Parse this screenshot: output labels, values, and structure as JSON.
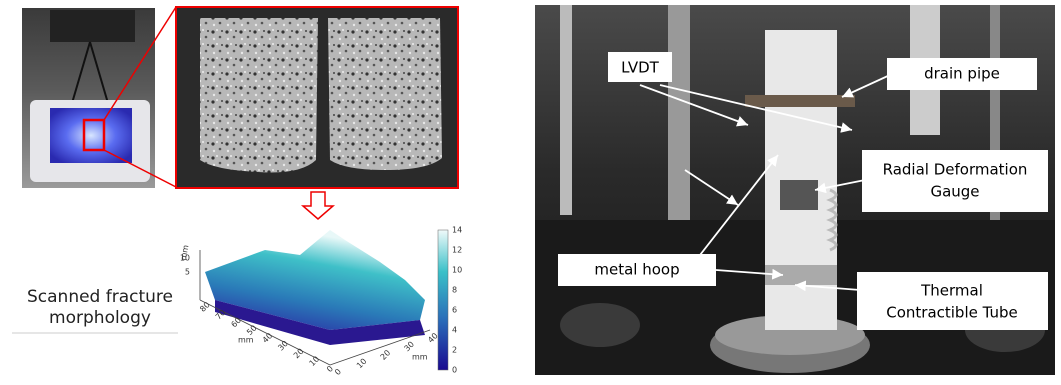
{
  "left_panel": {
    "caption": [
      "Scanned fracture",
      "morphology"
    ],
    "colorbar_ticks": [
      14,
      12,
      10,
      8,
      6,
      4,
      2,
      0
    ],
    "z_ticks": [
      10,
      5
    ],
    "y_ticks": [
      80,
      70,
      60,
      50,
      40,
      30,
      20,
      10,
      0
    ],
    "x_ticks": [
      0,
      10,
      20,
      30,
      40
    ],
    "axis_unit": "mm"
  },
  "right_panel": {
    "labels": [
      {
        "lines": [
          "LVDT"
        ]
      },
      {
        "lines": [
          "drain pipe"
        ]
      },
      {
        "lines": [
          "Radial Deformation",
          "Gauge"
        ]
      },
      {
        "lines": [
          "metal hoop"
        ]
      },
      {
        "lines": [
          "Thermal",
          "Contractible Tube"
        ]
      }
    ]
  }
}
